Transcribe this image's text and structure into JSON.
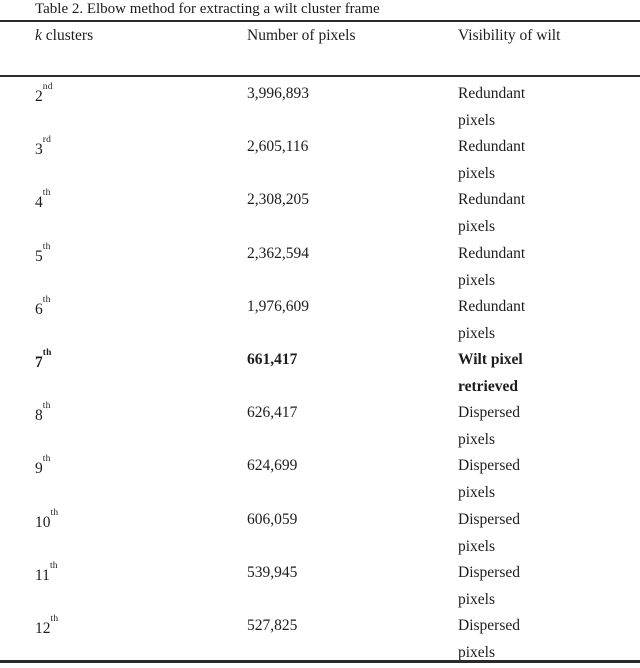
{
  "document": {
    "title": "Table 2. Elbow method for extracting a wilt cluster frame"
  },
  "table": {
    "header": {
      "col1_italic": "k",
      "col1_rest": " clusters",
      "col2": "Number of pixels",
      "col3": "Visibility of wilt"
    },
    "rows": [
      {
        "k_base": "2",
        "k_suffix": "nd",
        "pixels": "3,996,893",
        "visibility": [
          "Redundant",
          "pixels"
        ],
        "bold": false
      },
      {
        "k_base": "3",
        "k_suffix": "rd",
        "pixels": "2,605,116",
        "visibility": [
          "Redundant",
          "pixels"
        ],
        "bold": false
      },
      {
        "k_base": "4",
        "k_suffix": "th",
        "pixels": "2,308,205",
        "visibility": [
          "Redundant",
          "pixels"
        ],
        "bold": false
      },
      {
        "k_base": "5",
        "k_suffix": "th",
        "pixels": "2,362,594",
        "visibility": [
          "Redundant",
          "pixels"
        ],
        "bold": false
      },
      {
        "k_base": "6",
        "k_suffix": "th",
        "pixels": "1,976,609",
        "visibility": [
          "Redundant",
          "pixels"
        ],
        "bold": false
      },
      {
        "k_base": "7",
        "k_suffix": "th",
        "pixels": "661,417",
        "visibility": [
          "Wilt pixel",
          "retrieved"
        ],
        "bold": true
      },
      {
        "k_base": "8",
        "k_suffix": "th",
        "pixels": "626,417",
        "visibility": [
          "Dispersed",
          "pixels"
        ],
        "bold": false
      },
      {
        "k_base": "9",
        "k_suffix": "th",
        "pixels": "624,699",
        "visibility": [
          "Dispersed",
          "pixels"
        ],
        "bold": false
      },
      {
        "k_base": "10",
        "k_suffix": "th",
        "pixels": "606,059",
        "visibility": [
          "Dispersed",
          "pixels"
        ],
        "bold": false
      },
      {
        "k_base": "11",
        "k_suffix": "th",
        "pixels": "539,945",
        "visibility": [
          "Dispersed",
          "pixels"
        ],
        "bold": false
      },
      {
        "k_base": "12",
        "k_suffix": "th",
        "pixels": "527,825",
        "visibility": [
          "Dispersed",
          "pixels"
        ],
        "bold": false
      }
    ],
    "colors": {
      "background": "#ffffff",
      "text": "#1c1c1c",
      "rule": "#2b2b2b"
    }
  }
}
